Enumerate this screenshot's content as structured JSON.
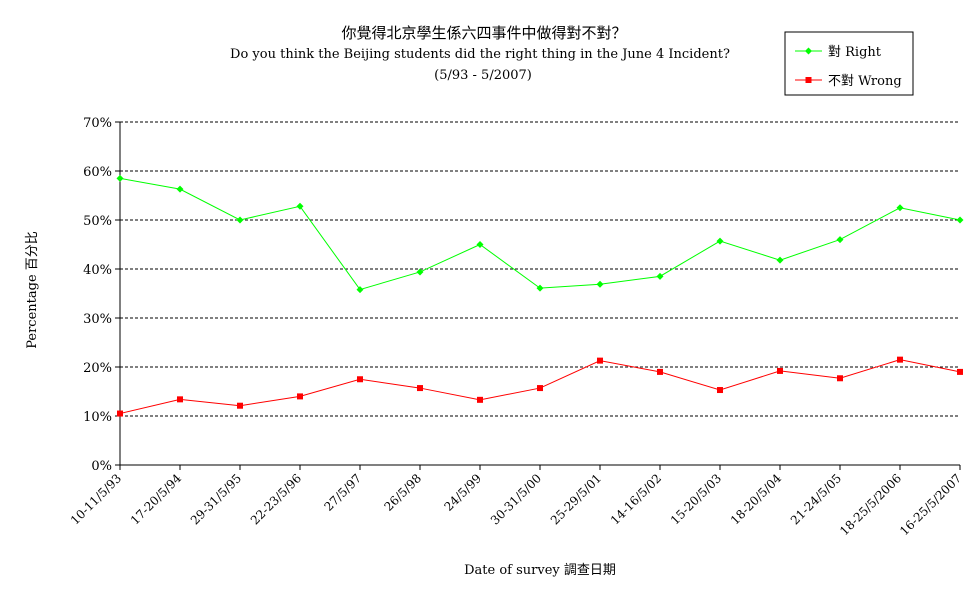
{
  "chart_data": {
    "type": "line",
    "title": "你覺得北京學生係六四事件中做得對不對？",
    "subtitle": "Do you think the Beijing students did the right thing in the June 4 Incident?",
    "period": "(5/93 - 5/2007)",
    "xlabel": "Date of survey  調查日期",
    "ylabel": "Percentage  百分比",
    "ylim": [
      0,
      70
    ],
    "yticks": [
      "0%",
      "10%",
      "20%",
      "30%",
      "40%",
      "50%",
      "60%",
      "70%"
    ],
    "grid": "horizontal dashed",
    "legend_position": "top-right",
    "categories": [
      "10-11/5/93",
      "17-20/5/94",
      "29-31/5/95",
      "22-23/5/96",
      "27/5/97",
      "26/5/98",
      "24/5/99",
      "30-31/5/00",
      "25-29/5/01",
      "14-16/5/02",
      "15-20/5/03",
      "18-20/5/04",
      "21-24/5/05",
      "18-25/5/2006",
      "16-25/5/2007"
    ],
    "series": [
      {
        "name": "對 Right",
        "color": "#00ff00",
        "marker": "diamond",
        "values": [
          58.5,
          56.3,
          50.0,
          52.8,
          35.8,
          39.4,
          45.0,
          36.1,
          36.9,
          38.5,
          45.7,
          41.8,
          46.0,
          52.5,
          50.0
        ]
      },
      {
        "name": "不對 Wrong",
        "color": "#ff0000",
        "marker": "square",
        "values": [
          10.5,
          13.4,
          12.1,
          14.0,
          17.5,
          15.7,
          13.3,
          15.7,
          21.3,
          19.0,
          15.3,
          19.2,
          17.7,
          21.5,
          19.0
        ]
      }
    ]
  }
}
